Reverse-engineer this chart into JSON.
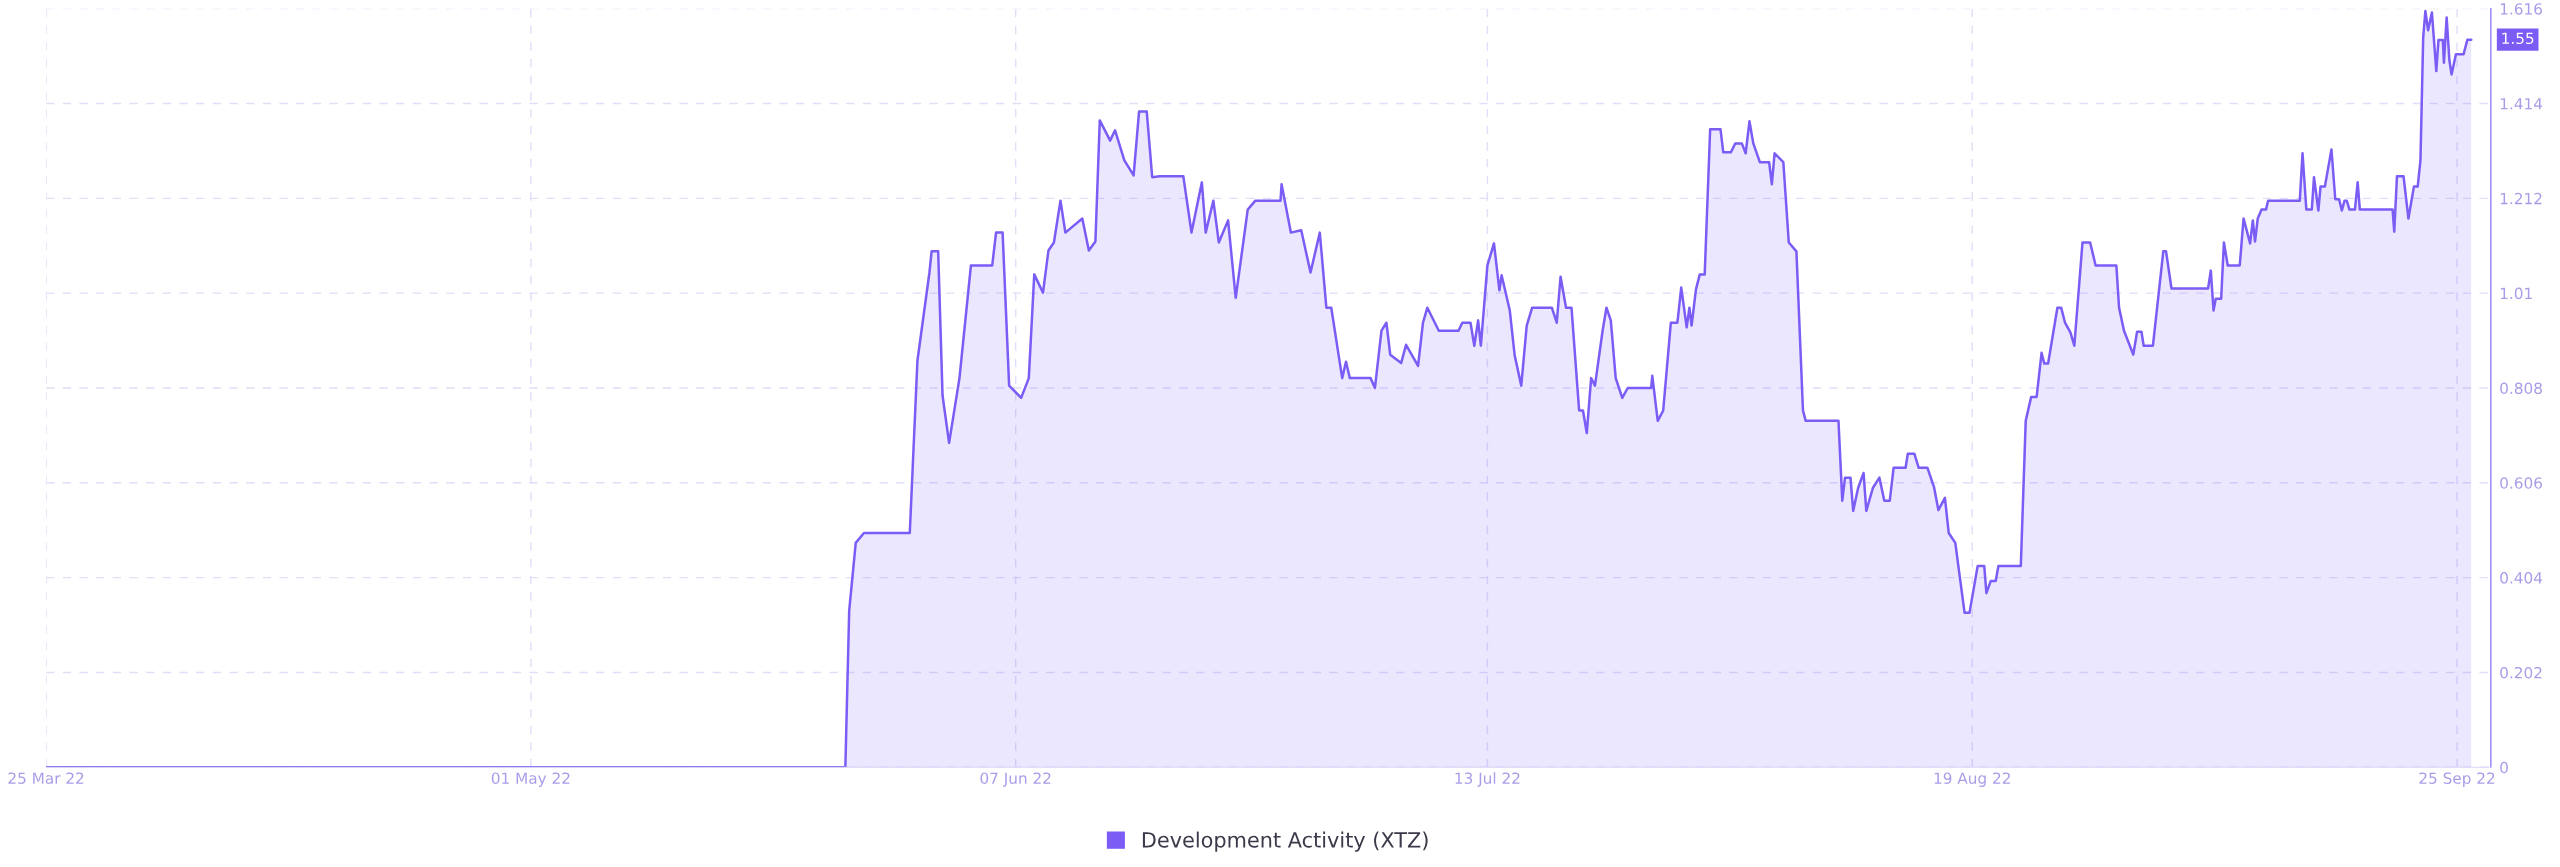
{
  "chart_data": {
    "type": "area",
    "x": [
      "2022-03-25",
      "2022-05-25T00:00",
      "2022-05-25T07:00",
      "2022-05-25T19:00",
      "2022-05-26T10:00",
      "2022-05-29T22:00",
      "2022-05-30T12:00",
      "2022-05-31T10:00",
      "2022-05-31T14:00",
      "2022-06-01T02:00",
      "2022-06-01T10:00",
      "2022-06-01T22:00",
      "2022-06-02T17:00",
      "2022-06-03T14:00",
      "2022-06-05T05:00",
      "2022-06-05T12:00",
      "2022-06-06T00:00",
      "2022-06-06T12:00",
      "2022-06-07T10:00",
      "2022-06-08T00:00",
      "2022-06-08T10:00",
      "2022-06-09T02:00",
      "2022-06-09T12:00",
      "2022-06-09T22:00",
      "2022-06-10T10:00",
      "2022-06-10T19:00",
      "2022-06-12T02:00",
      "2022-06-12T14:00",
      "2022-06-13T02:00",
      "2022-06-13T10:00",
      "2022-06-14T05:00",
      "2022-06-14T14:00",
      "2022-06-15T07:00",
      "2022-06-16T00:00",
      "2022-06-16T10:00",
      "2022-06-17T00:00",
      "2022-06-17T10:00",
      "2022-06-18T00:00",
      "2022-06-19T19:00",
      "2022-06-20T10:00",
      "2022-06-21T05:00",
      "2022-06-21T12:00",
      "2022-06-22T02:00",
      "2022-06-22T12:00",
      "2022-06-23T05:00",
      "2022-06-23T19:00",
      "2022-06-24T17:00",
      "2022-06-25T07:00",
      "2022-06-27T05:00",
      "2022-06-27T07:00",
      "2022-06-28T00:00",
      "2022-06-28T19:00",
      "2022-06-29T12:00",
      "2022-06-30T05:00",
      "2022-06-30T17:00",
      "2022-07-01T02:00",
      "2022-07-01T22:00",
      "2022-07-02T05:00",
      "2022-07-02T12:00",
      "2022-07-04T02:00",
      "2022-07-04T10:00",
      "2022-07-04T22:00",
      "2022-07-05T07:00",
      "2022-07-05T14:00",
      "2022-07-06T10:00",
      "2022-07-06T19:00",
      "2022-07-07T17:00",
      "2022-07-08T02:00",
      "2022-07-08T10:00",
      "2022-07-09T07:00",
      "2022-07-10T19:00",
      "2022-07-11T02:00",
      "2022-07-11T17:00",
      "2022-07-12T00:00",
      "2022-07-12T07:00",
      "2022-07-12T12:00",
      "2022-07-13T00:00",
      "2022-07-13T12:00",
      "2022-07-13T22:00",
      "2022-07-14T02:00",
      "2022-07-14T17:00",
      "2022-07-15T02:00",
      "2022-07-15T14:00",
      "2022-07-16T00:00",
      "2022-07-16T10:00",
      "2022-07-17T22:00",
      "2022-07-18T07:00",
      "2022-07-18T14:00",
      "2022-07-19T00:00",
      "2022-07-19T10:00",
      "2022-07-20T00:00",
      "2022-07-20T07:00",
      "2022-07-20T14:00",
      "2022-07-20T22:00",
      "2022-07-21T05:00",
      "2022-07-21T19:00",
      "2022-07-22T02:00",
      "2022-07-22T10:00",
      "2022-07-22T19:00",
      "2022-07-23T07:00",
      "2022-07-23T17:00",
      "2022-07-25T12:00",
      "2022-07-25T14:00",
      "2022-07-26T00:00",
      "2022-07-26T10:00",
      "2022-07-27T00:00",
      "2022-07-27T12:00",
      "2022-07-27T19:00",
      "2022-07-28T05:00",
      "2022-07-28T10:00",
      "2022-07-28T14:00",
      "2022-07-28T22:00",
      "2022-07-29T05:00",
      "2022-07-29T14:00",
      "2022-07-30T00:00",
      "2022-07-30T19:00",
      "2022-07-31T00:00",
      "2022-07-31T14:00",
      "2022-07-31T22:00",
      "2022-08-01T10:00",
      "2022-08-01T17:00",
      "2022-08-02T00:00",
      "2022-08-02T07:00",
      "2022-08-02T19:00",
      "2022-08-03T12:00",
      "2022-08-03T17:00",
      "2022-08-03T22:00",
      "2022-08-04T14:00",
      "2022-08-05T00:00",
      "2022-08-05T14:00",
      "2022-08-06T02:00",
      "2022-08-06T07:00",
      "2022-08-08T19:00",
      "2022-08-09T02:00",
      "2022-08-09T07:00",
      "2022-08-09T17:00",
      "2022-08-09T22:00",
      "2022-08-10T07:00",
      "2022-08-10T17:00",
      "2022-08-10T22:00",
      "2022-08-11T10:00",
      "2022-08-11T22:00",
      "2022-08-12T07:00",
      "2022-08-12T17:00",
      "2022-08-13T00:00",
      "2022-08-13T22:00",
      "2022-08-14T02:00",
      "2022-08-14T14:00",
      "2022-08-14T22:00",
      "2022-08-15T14:00",
      "2022-08-16T02:00",
      "2022-08-16T10:00",
      "2022-08-16T22:00",
      "2022-08-17T05:00",
      "2022-08-17T17:00",
      "2022-08-18T10:00",
      "2022-08-18T19:00",
      "2022-08-19T10:00",
      "2022-08-19T22:00",
      "2022-08-20T02:00",
      "2022-08-20T10:00",
      "2022-08-20T19:00",
      "2022-08-21T00:00",
      "2022-08-22T17:00",
      "2022-08-23T02:00",
      "2022-08-23T12:00",
      "2022-08-23T22:00",
      "2022-08-24T07:00",
      "2022-08-24T12:00",
      "2022-08-24T19:00",
      "2022-08-25T12:00",
      "2022-08-25T19:00",
      "2022-08-26T02:00",
      "2022-08-26T12:00",
      "2022-08-26T19:00",
      "2022-08-27T10:00",
      "2022-08-28T00:00",
      "2022-08-28T10:00",
      "2022-08-30T00:00",
      "2022-08-30T05:00",
      "2022-08-30T14:00",
      "2022-08-31T07:00",
      "2022-08-31T14:00",
      "2022-08-31T22:00",
      "2022-09-01T02:00",
      "2022-09-01T19:00",
      "2022-09-02T14:00",
      "2022-09-02T19:00",
      "2022-09-03T05:00",
      "2022-09-06T00:00",
      "2022-09-06T05:00",
      "2022-09-06T10:00",
      "2022-09-06T14:00",
      "2022-09-07T00:00",
      "2022-09-07T05:00",
      "2022-09-07T12:00",
      "2022-09-08T10:00",
      "2022-09-08T17:00",
      "2022-09-09T05:00",
      "2022-09-09T10:00",
      "2022-09-09T14:00",
      "2022-09-09T19:00",
      "2022-09-10T02:00",
      "2022-09-10T10:00",
      "2022-09-10T14:00",
      "2022-09-13T00:00",
      "2022-09-13T05:00",
      "2022-09-13T12:00",
      "2022-09-13T22:00",
      "2022-09-14T02:00",
      "2022-09-14T10:00",
      "2022-09-14T14:00",
      "2022-09-14T22:00",
      "2022-09-15T10:00",
      "2022-09-15T17:00",
      "2022-09-16T00:00",
      "2022-09-16T05:00",
      "2022-09-16T10:00",
      "2022-09-16T14:00",
      "2022-09-16T19:00",
      "2022-09-17T05:00",
      "2022-09-17T10:00",
      "2022-09-17T14:00",
      "2022-09-20T02:00",
      "2022-09-20T05:00",
      "2022-09-20T10:00",
      "2022-09-20T22:00",
      "2022-09-21T07:00",
      "2022-09-21T17:00",
      "2022-09-22T00:00",
      "2022-09-22T05:00",
      "2022-09-22T10:00",
      "2022-09-22T14:00",
      "2022-09-22T19:00",
      "2022-09-23T02:00",
      "2022-09-23T10:00",
      "2022-09-23T14:00",
      "2022-09-23T22:00",
      "2022-09-24T00:00",
      "2022-09-24T05:00",
      "2022-09-24T10:00",
      "2022-09-24T14:00",
      "2022-09-24T22:00",
      "2022-09-25T12:00",
      "2022-09-25T19:00",
      "2022-09-26T02:00"
    ],
    "series": [
      {
        "name": "Development Activity (XTZ)",
        "color": "#7b5cf5",
        "values": [
          0,
          0,
          0.333,
          0.478,
          0.499,
          0.499,
          0.866,
          1.054,
          1.099,
          1.099,
          0.792,
          0.691,
          0.829,
          1.069,
          1.069,
          1.139,
          1.139,
          0.813,
          0.787,
          0.829,
          1.05,
          1.011,
          1.101,
          1.118,
          1.207,
          1.139,
          1.169,
          1.101,
          1.12,
          1.378,
          1.335,
          1.357,
          1.293,
          1.261,
          1.397,
          1.397,
          1.257,
          1.259,
          1.259,
          1.139,
          1.246,
          1.139,
          1.207,
          1.118,
          1.165,
          1.0,
          1.188,
          1.207,
          1.207,
          1.242,
          1.139,
          1.144,
          1.054,
          1.139,
          0.979,
          0.979,
          0.829,
          0.864,
          0.829,
          0.829,
          0.808,
          0.93,
          0.947,
          0.879,
          0.861,
          0.9,
          0.855,
          0.947,
          0.979,
          0.93,
          0.93,
          0.947,
          0.947,
          0.898,
          0.952,
          0.898,
          1.069,
          1.116,
          1.016,
          1.048,
          0.973,
          0.877,
          0.813,
          0.941,
          0.979,
          0.979,
          0.947,
          1.045,
          0.979,
          0.979,
          0.76,
          0.76,
          0.712,
          0.829,
          0.813,
          0.93,
          0.979,
          0.952,
          0.829,
          0.787,
          0.808,
          0.808,
          0.834,
          0.738,
          0.76,
          0.947,
          0.947,
          1.022,
          0.937,
          0.979,
          0.941,
          1.018,
          1.05,
          1.05,
          1.359,
          1.359,
          1.31,
          1.31,
          1.329,
          1.329,
          1.308,
          1.376,
          1.329,
          1.289,
          1.289,
          1.242,
          1.308,
          1.289,
          1.118,
          1.099,
          0.76,
          0.738,
          0.738,
          0.568,
          0.617,
          0.617,
          0.546,
          0.595,
          0.627,
          0.546,
          0.595,
          0.617,
          0.568,
          0.568,
          0.638,
          0.638,
          0.668,
          0.668,
          0.638,
          0.638,
          0.597,
          0.548,
          0.574,
          0.499,
          0.478,
          0.329,
          0.329,
          0.429,
          0.429,
          0.371,
          0.397,
          0.397,
          0.429,
          0.429,
          0.738,
          0.789,
          0.789,
          0.883,
          0.86,
          0.86,
          0.979,
          0.979,
          0.947,
          0.926,
          0.898,
          1.118,
          1.118,
          1.069,
          1.069,
          0.979,
          0.93,
          0.879,
          0.928,
          0.928,
          0.898,
          0.898,
          1.099,
          1.099,
          1.02,
          1.02,
          1.058,
          0.973,
          0.998,
          0.998,
          1.118,
          1.069,
          1.069,
          1.169,
          1.116,
          1.165,
          1.12,
          1.169,
          1.188,
          1.188,
          1.207,
          1.207,
          1.308,
          1.188,
          1.188,
          1.257,
          1.186,
          1.237,
          1.237,
          1.316,
          1.21,
          1.21,
          1.186,
          1.207,
          1.207,
          1.188,
          1.188,
          1.246,
          1.188,
          1.188,
          1.141,
          1.259,
          1.259,
          1.169,
          1.237,
          1.237,
          1.293,
          1.554,
          1.611,
          1.57,
          1.608,
          1.483,
          1.549,
          1.549,
          1.501,
          1.597,
          1.506,
          1.476,
          1.519,
          1.519,
          1.55,
          1.55
        ]
      }
    ],
    "xlim": [
      "2022-03-25",
      "2022-09-27T14:00"
    ],
    "xticks": [
      {
        "value": "2022-03-25",
        "label": "25 Mar 22"
      },
      {
        "value": "2022-05-01",
        "label": "01 May 22"
      },
      {
        "value": "2022-06-07",
        "label": "07 Jun 22"
      },
      {
        "value": "2022-07-13",
        "label": "13 Jul 22"
      },
      {
        "value": "2022-08-19",
        "label": "19 Aug 22"
      },
      {
        "value": "2022-09-25",
        "label": "25 Sep 22"
      }
    ],
    "ylim": [
      0,
      1.616
    ],
    "yticks": [
      0,
      0.202,
      0.404,
      0.606,
      0.808,
      1.01,
      1.212,
      1.414,
      1.616
    ],
    "annotations": [
      {
        "text": "1.55",
        "x": "2022-09-26T02:00",
        "y": 1.55
      }
    ],
    "grid": true,
    "legend": "bottom",
    "line_style": "solid"
  }
}
